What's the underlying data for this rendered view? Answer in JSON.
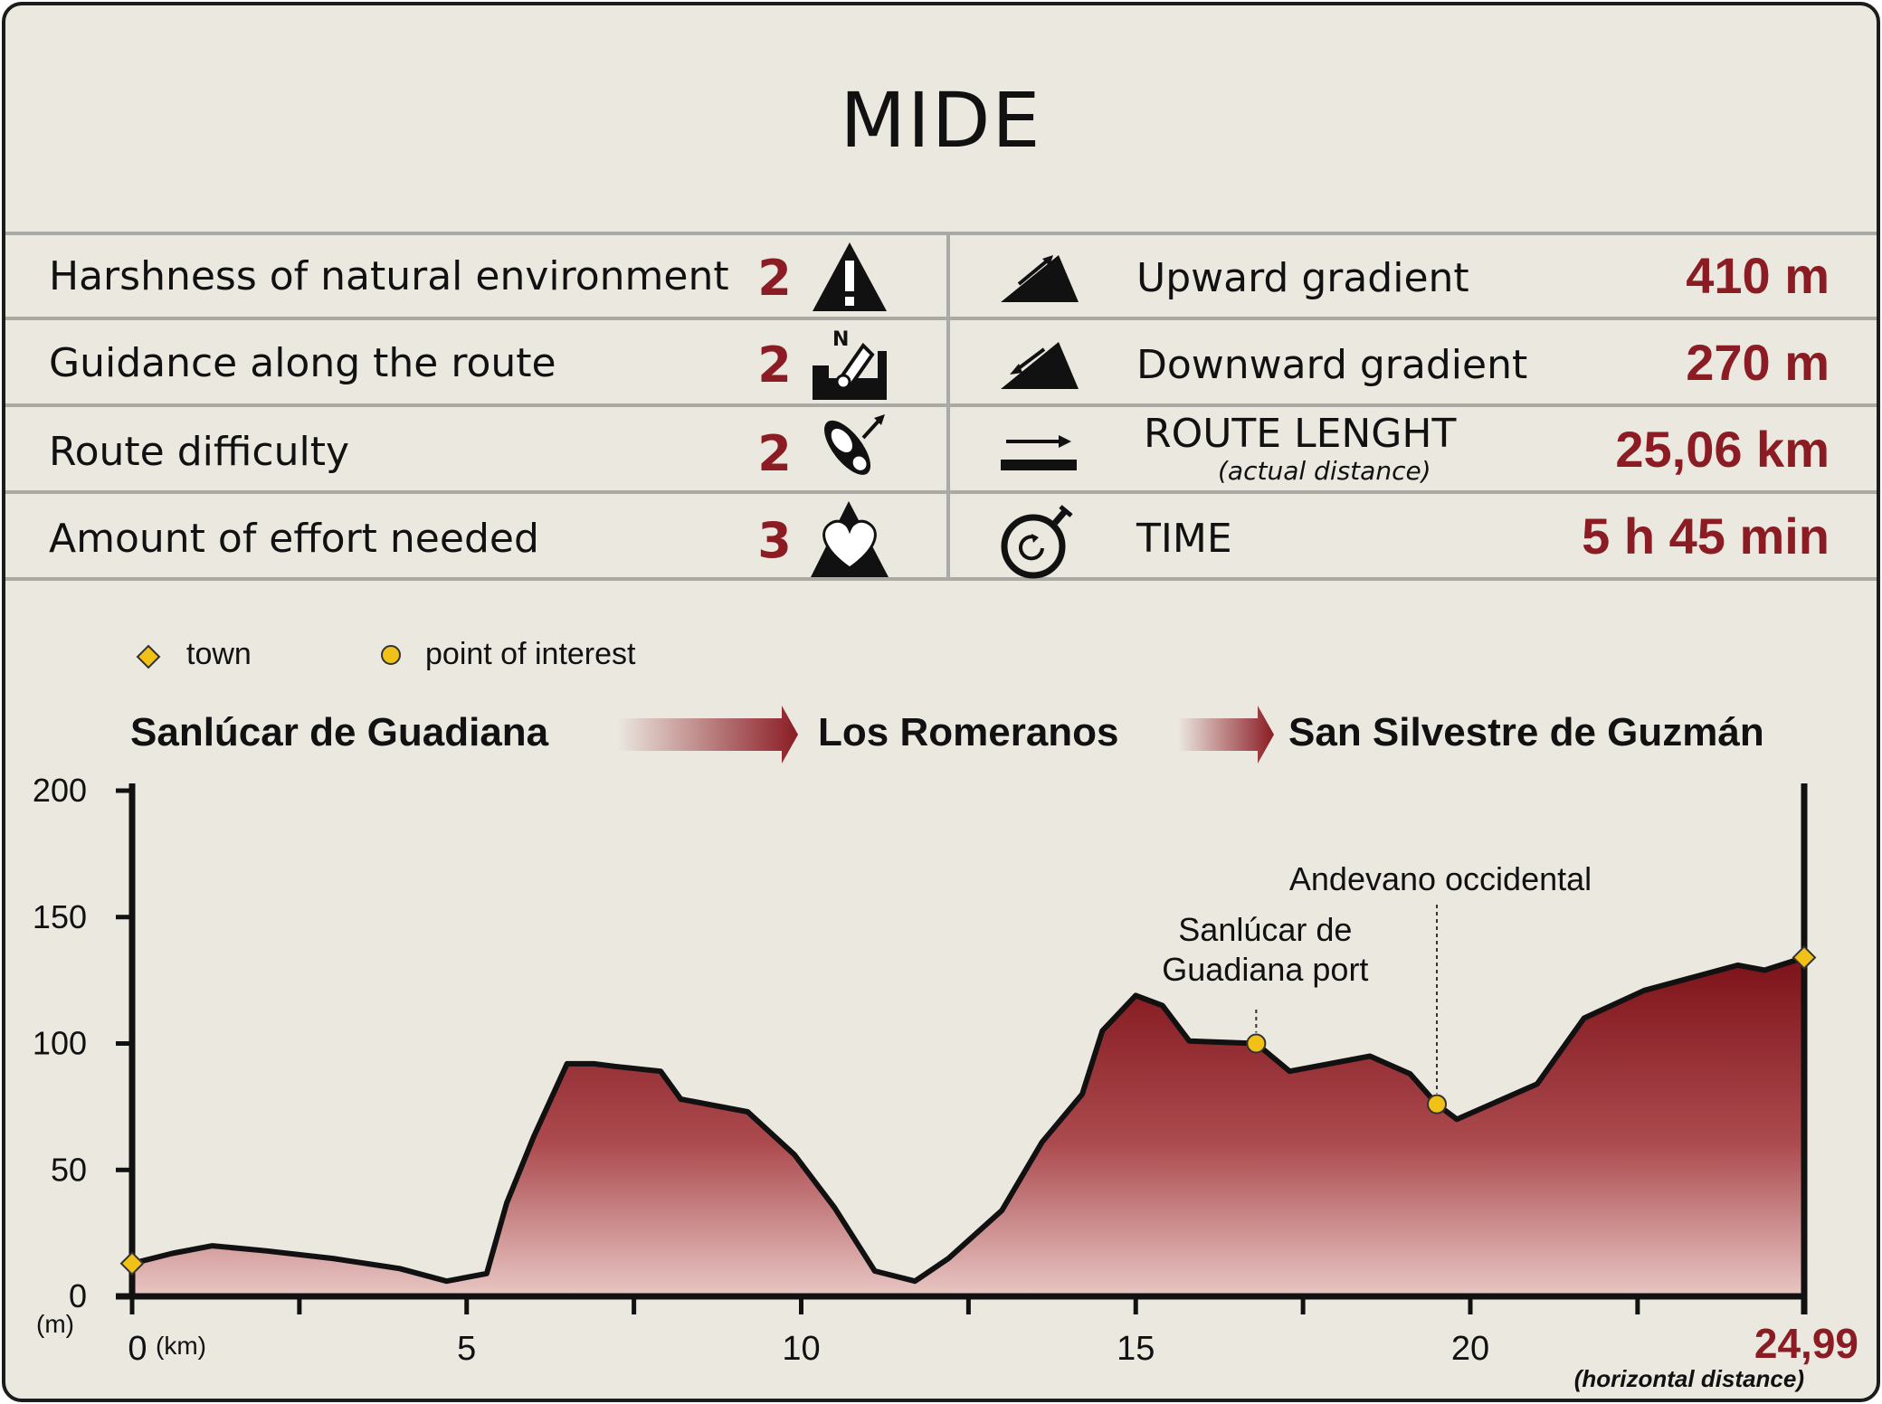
{
  "title": "MIDE",
  "mide": {
    "rows": [
      {
        "label": "Harshness of natural environment",
        "score": "2",
        "icon": "warning-triangle-icon"
      },
      {
        "label": "Guidance along the route",
        "score": "2",
        "icon": "compass-map-icon"
      },
      {
        "label": "Route difficulty",
        "score": "2",
        "icon": "footprint-icon"
      },
      {
        "label": "Amount of effort needed",
        "score": "3",
        "icon": "heart-mountain-icon"
      }
    ],
    "stats": [
      {
        "label": "Upward gradient",
        "value": "410 m",
        "icon": "upward-gradient-icon"
      },
      {
        "label": "Downward gradient",
        "value": "270 m",
        "icon": "downward-gradient-icon"
      },
      {
        "label": "ROUTE LENGHT",
        "sublabel": "(actual distance)",
        "value": "25,06 km",
        "icon": "route-length-icon"
      },
      {
        "label": "TIME",
        "value": "5 h 45 min",
        "icon": "stopwatch-icon"
      }
    ]
  },
  "legend": {
    "town": "town",
    "poi": "point of interest"
  },
  "route": {
    "start": "Sanlúcar de Guadiana",
    "middle": "Los Romeranos",
    "end": "San Silvestre de Guzmán"
  },
  "colors": {
    "accent": "#8b1c24",
    "marker": "#f2c118",
    "panel": "#ebe8e0"
  },
  "chart_data": {
    "type": "area",
    "x": [
      0,
      0.6,
      1.2,
      2,
      3,
      4,
      4.7,
      5.3,
      5.6,
      6,
      6.5,
      6.9,
      7.2,
      7.9,
      8.2,
      9.2,
      9.9,
      10.5,
      11.1,
      11.7,
      12.2,
      13,
      13.6,
      14.2,
      14.5,
      15,
      15.4,
      15.8,
      16.8,
      17.3,
      18.5,
      19.1,
      19.5,
      19.8,
      21,
      21.7,
      22.6,
      24,
      24.4,
      24.99
    ],
    "y": [
      13,
      17,
      20,
      18,
      15,
      11,
      6,
      9,
      37,
      63,
      92,
      92,
      91,
      89,
      78,
      73,
      56,
      35,
      10,
      6,
      15,
      34,
      61,
      80,
      105,
      119,
      115,
      101,
      100,
      89,
      95,
      88,
      76,
      70,
      84,
      110,
      121,
      131,
      129,
      134
    ],
    "xlabel": "(km)",
    "ylabel": "(m)",
    "xlim": [
      0,
      24.99
    ],
    "ylim": [
      0,
      200
    ],
    "xticks": [
      0,
      5,
      10,
      15,
      20
    ],
    "yticks": [
      0,
      50,
      100,
      150,
      200
    ],
    "end_label": "24,99",
    "end_note": "(horizontal distance)",
    "towns": [
      {
        "x": 0,
        "y": 13
      },
      {
        "x": 24.99,
        "y": 134
      }
    ],
    "points_of_interest": [
      {
        "name": "Sanlúcar de Guadiana port",
        "lines": [
          "Sanlúcar de",
          "Guadiana port"
        ],
        "x": 16.8,
        "y": 100
      },
      {
        "name": "Andevano occidental",
        "lines": [
          "Andevano occidental"
        ],
        "x": 19.5,
        "y": 76
      }
    ],
    "grid": false,
    "legend": "top-left"
  }
}
